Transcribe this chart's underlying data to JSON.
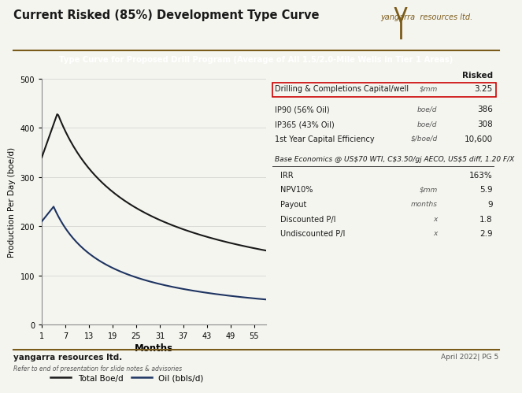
{
  "title": "Current Risked (85%) Development Type Curve",
  "subtitle": "Type Curve for Proposed Drill Program (Average of All 1.5/2.0-Mile Wells in Tier 1 Areas)",
  "xlabel": "Months",
  "ylabel": "Production Per Day (boe/d)",
  "xlim": [
    1,
    58
  ],
  "ylim": [
    0,
    500
  ],
  "xticks": [
    1,
    7,
    13,
    19,
    25,
    31,
    37,
    43,
    49,
    55
  ],
  "yticks": [
    0,
    100,
    200,
    300,
    400,
    500
  ],
  "bg_color": "#f5f5f0",
  "plot_bg_color": "#f5f5f0",
  "header_bg_color": "#1e3461",
  "header_text_color": "#ffffff",
  "line_total_color": "#1a1a1a",
  "line_oil_color": "#1e3461",
  "footer_line_color": "#7B5B1A",
  "sep_line_color": "#7B5B1A",
  "table_box_color": "#cc0000",
  "footer_company": "yangarra resources ltd.",
  "footer_note": "Refer to end of presentation for slide notes & advisories",
  "footer_date": "April 2022| PG 5",
  "logo_color": "#7B5B1A",
  "table_data": {
    "Risked_label": "Risked",
    "row1_label": "Drilling & Completions Capital/well",
    "row1_unit": "$mm",
    "row1_val": "3.25",
    "row2_label": "IP90 (56% Oil)",
    "row2_unit": "boe/d",
    "row2_val": "386",
    "row3_label": "IP365 (43% Oil)",
    "row3_unit": "boe/d",
    "row3_val": "308",
    "row4_label": "1st Year Capital Efficiency",
    "row4_unit": "$/boe/d",
    "row4_val": "10,600",
    "base_econ_label": "Base Economics @ US$70 WTI, C$3.50/gj AECO, US$5 diff, 1.20 F/X",
    "row5_label": "IRR",
    "row5_unit": "",
    "row5_val": "163%",
    "row6_label": "NPV10%",
    "row6_unit": "$mm",
    "row6_val": "5.9",
    "row7_label": "Payout",
    "row7_unit": "months",
    "row7_val": "9",
    "row8_label": "Discounted P/I",
    "row8_unit": "x",
    "row8_val": "1.8",
    "row9_label": "Undiscounted P/I",
    "row9_unit": "x",
    "row9_val": "2.9"
  }
}
